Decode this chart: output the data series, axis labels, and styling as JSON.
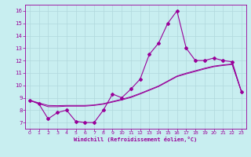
{
  "xlabel": "Windchill (Refroidissement éolien,°C)",
  "bg_color": "#c8eef0",
  "grid_color": "#b0d8dc",
  "line_color": "#990099",
  "x": [
    0,
    1,
    2,
    3,
    4,
    5,
    6,
    7,
    8,
    9,
    10,
    11,
    12,
    13,
    14,
    15,
    16,
    17,
    18,
    19,
    20,
    21,
    22,
    23
  ],
  "y_main": [
    8.8,
    8.5,
    7.3,
    7.8,
    8.0,
    7.1,
    7.0,
    7.0,
    8.0,
    9.3,
    9.0,
    9.7,
    10.5,
    12.5,
    13.4,
    15.0,
    16.0,
    13.0,
    12.0,
    12.0,
    12.2,
    12.0,
    11.9,
    9.5
  ],
  "y_smooth1": [
    8.8,
    8.58,
    8.38,
    8.36,
    8.38,
    8.38,
    8.38,
    8.42,
    8.52,
    8.7,
    8.88,
    9.08,
    9.35,
    9.65,
    9.95,
    10.35,
    10.75,
    10.98,
    11.18,
    11.38,
    11.55,
    11.65,
    11.72,
    9.5
  ],
  "y_smooth2": [
    8.8,
    8.52,
    8.28,
    8.28,
    8.32,
    8.32,
    8.32,
    8.38,
    8.48,
    8.65,
    8.82,
    9.02,
    9.3,
    9.6,
    9.9,
    10.3,
    10.7,
    10.92,
    11.12,
    11.32,
    11.5,
    11.6,
    11.68,
    9.5
  ],
  "ylim": [
    6.5,
    16.5
  ],
  "yticks": [
    7,
    8,
    9,
    10,
    11,
    12,
    13,
    14,
    15,
    16
  ],
  "xlim": [
    -0.5,
    23.5
  ],
  "xticks": [
    0,
    1,
    2,
    3,
    4,
    5,
    6,
    7,
    8,
    9,
    10,
    11,
    12,
    13,
    14,
    15,
    16,
    17,
    18,
    19,
    20,
    21,
    22,
    23
  ]
}
